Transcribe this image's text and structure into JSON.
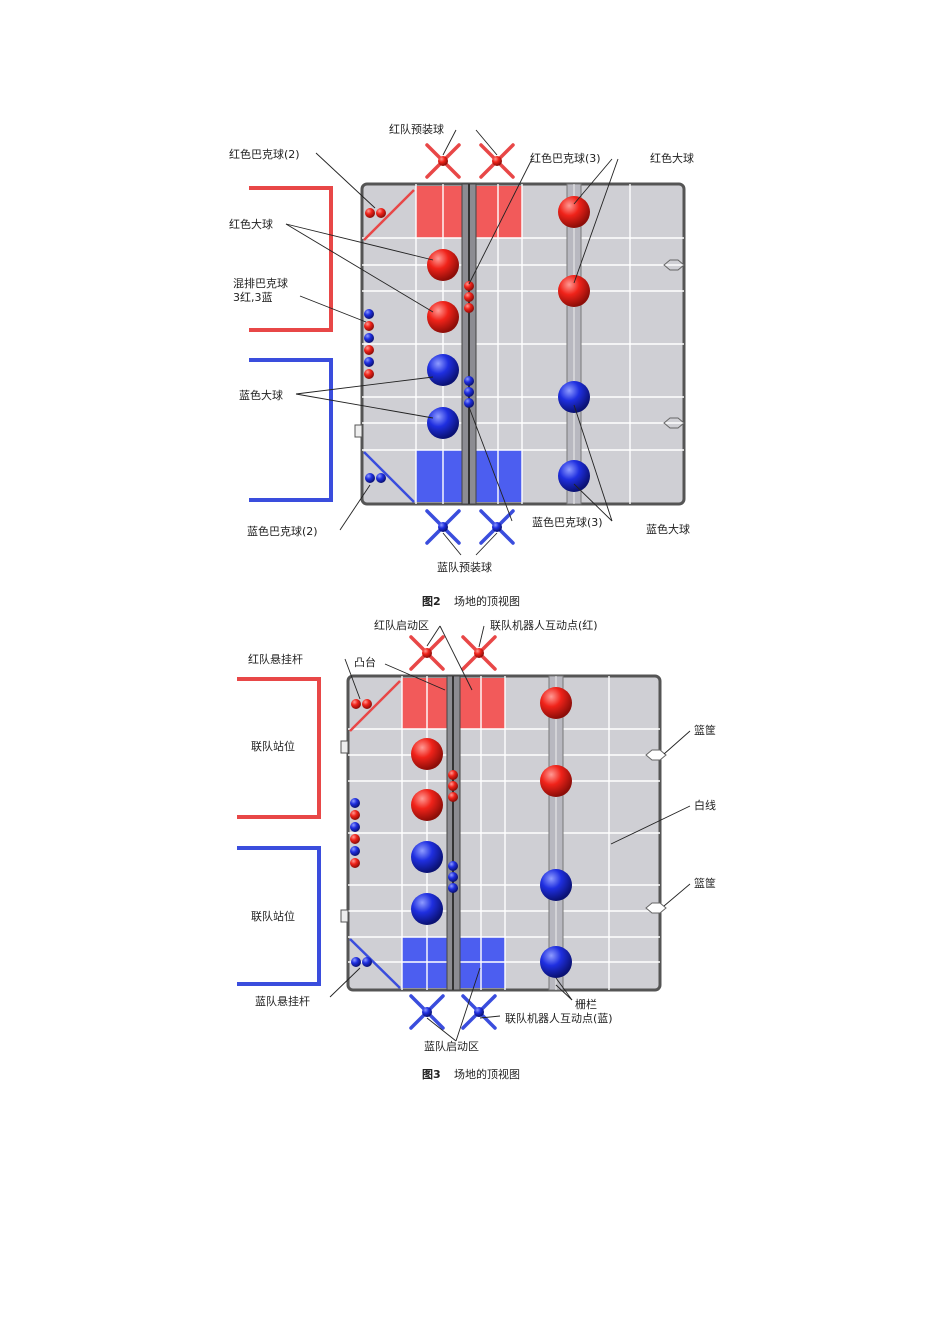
{
  "fig2": {
    "caption_num": "图2",
    "caption_text": "场地的顶视图",
    "labels": {
      "red_preload": "红队预装球",
      "red_buck2": "红色巴克球(2)",
      "red_buck3": "红色巴克球(3)",
      "red_big_left": "红色大球",
      "red_big_right": "红色大球",
      "mixed_1": "混排巴克球",
      "mixed_2": "3红,3蓝",
      "blue_big_left": "蓝色大球",
      "blue_buck2": "蓝色巴克球(2)",
      "blue_buck3": "蓝色巴克球(3)",
      "blue_big_right": "蓝色大球",
      "blue_preload": "蓝队预装球"
    }
  },
  "fig3": {
    "caption_num": "图3",
    "caption_text": "场地的顶视图",
    "labels": {
      "red_start": "红队启动区",
      "alliance_red": "联队机器人互动点(红)",
      "red_hang": "红队悬挂杆",
      "platform": "凸台",
      "station_red": "联队站位",
      "basket_top": "篮筐",
      "white_line": "白线",
      "basket_bottom": "篮筐",
      "station_blue": "联队站位",
      "blue_hang": "蓝队悬挂杆",
      "fence": "栅栏",
      "alliance_blue": "联队机器人互动点(蓝)",
      "blue_start": "蓝队启动区"
    }
  },
  "colors": {
    "red": "#e8322b",
    "blue": "#2a3ed6",
    "field": "#cfcfd4",
    "grid": "#ffffff",
    "border": "#444444"
  }
}
